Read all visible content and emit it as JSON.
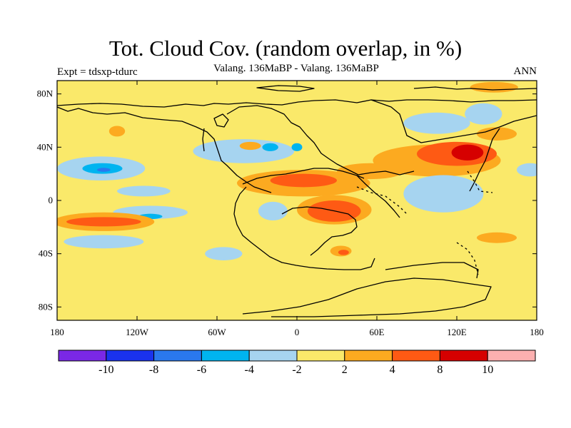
{
  "title": "Tot. Cloud Cov. (random overlap, in %)",
  "subtitle": "Valang. 136MaBP - Valang.  136MaBP",
  "experiment": "Expt = tdsxp-tdurc",
  "season": "ANN",
  "chart_data": {
    "type": "contour-map",
    "projection": "cylindrical-equidistant",
    "xlim": [
      -180,
      180
    ],
    "ylim": [
      -90,
      90
    ],
    "x_ticks": [
      {
        "value": -180,
        "label": "180"
      },
      {
        "value": -120,
        "label": "120W"
      },
      {
        "value": -60,
        "label": "60W"
      },
      {
        "value": 0,
        "label": "0"
      },
      {
        "value": 60,
        "label": "60E"
      },
      {
        "value": 120,
        "label": "120E"
      },
      {
        "value": 180,
        "label": "180"
      }
    ],
    "y_ticks": [
      {
        "value": 80,
        "label": "80N"
      },
      {
        "value": 40,
        "label": "40N"
      },
      {
        "value": 0,
        "label": "0"
      },
      {
        "value": -40,
        "label": "40S"
      },
      {
        "value": -80,
        "label": "80S"
      }
    ],
    "colorbar": {
      "colors": [
        "#7a28e6",
        "#1a32ee",
        "#2a78ee",
        "#00b4f0",
        "#a6d4f0",
        "#fae96a",
        "#fcaa20",
        "#fe5a14",
        "#d60000",
        "#fcb0b0"
      ],
      "boundaries": [
        "-10",
        "-8",
        "-6",
        "-4",
        "-2",
        "2",
        "4",
        "8",
        "10"
      ]
    },
    "fields": [
      {
        "name": "N Pacific 20N",
        "level": -2,
        "cx": -147,
        "cy": 24,
        "rx": 33,
        "ry": 9
      },
      {
        "name": "N Pacific 20N core",
        "level": -4,
        "cx": -146,
        "cy": 24,
        "rx": 15,
        "ry": 4
      },
      {
        "name": "N Pacific 20N inner",
        "level": -6,
        "cx": -145,
        "cy": 23,
        "rx": 5,
        "ry": 1.5
      },
      {
        "name": "E Pacific 8N",
        "level": -2,
        "cx": -115,
        "cy": 7,
        "rx": 20,
        "ry": 4
      },
      {
        "name": "S Pacific 10S",
        "level": -2,
        "cx": -110,
        "cy": -9,
        "rx": 28,
        "ry": 5
      },
      {
        "name": "S Pacific 10S core",
        "level": -4,
        "cx": -110,
        "cy": -12,
        "rx": 9,
        "ry": 2
      },
      {
        "name": "S Pacific 30S",
        "level": -2,
        "cx": -145,
        "cy": -31,
        "rx": 30,
        "ry": 5
      },
      {
        "name": "S Pacific 15S",
        "level": 2,
        "cx": -145,
        "cy": -16,
        "rx": 38,
        "ry": 7
      },
      {
        "name": "S Pacific 15S core",
        "level": 4,
        "cx": -145,
        "cy": -16,
        "rx": 28,
        "ry": 3.5
      },
      {
        "name": "N Pacific 50N",
        "level": 2,
        "cx": -135,
        "cy": 52,
        "rx": 6,
        "ry": 4
      },
      {
        "name": "N Atlantic 35N",
        "level": -2,
        "cx": -40,
        "cy": 37,
        "rx": 38,
        "ry": 9
      },
      {
        "name": "N Atlantic 40N core",
        "level": -4,
        "cx": -20,
        "cy": 40,
        "rx": 6,
        "ry": 3
      },
      {
        "name": "Tethys 40N core",
        "level": -4,
        "cx": 0,
        "cy": 40,
        "rx": 4,
        "ry": 3
      },
      {
        "name": "W Tethys 35N",
        "level": 2,
        "cx": -35,
        "cy": 41,
        "rx": 8,
        "ry": 3
      },
      {
        "name": "Equatorial Africa 10N",
        "level": 2,
        "cx": 5,
        "cy": 13,
        "rx": 50,
        "ry": 10
      },
      {
        "name": "Equatorial Africa 10N core",
        "level": 4,
        "cx": 5,
        "cy": 15,
        "rx": 25,
        "ry": 5
      },
      {
        "name": "Africa 10S",
        "level": 2,
        "cx": 28,
        "cy": -7,
        "rx": 28,
        "ry": 11
      },
      {
        "name": "Africa 10S core",
        "level": 4,
        "cx": 28,
        "cy": -8,
        "rx": 20,
        "ry": 8
      },
      {
        "name": "South Atlantic 5S",
        "level": -2,
        "cx": -18,
        "cy": -8,
        "rx": 11,
        "ry": 7
      },
      {
        "name": "S America 40S",
        "level": -2,
        "cx": -55,
        "cy": -40,
        "rx": 14,
        "ry": 5
      },
      {
        "name": "S Africa 40S",
        "level": 2,
        "cx": 33,
        "cy": -38,
        "rx": 8,
        "ry": 4
      },
      {
        "name": "S Africa 40S core",
        "level": 4,
        "cx": 35,
        "cy": -39,
        "rx": 4,
        "ry": 2
      },
      {
        "name": "Asia 35N",
        "level": 2,
        "cx": 105,
        "cy": 30,
        "rx": 48,
        "ry": 12
      },
      {
        "name": "Asia 35N core",
        "level": 4,
        "cx": 120,
        "cy": 35,
        "rx": 30,
        "ry": 9
      },
      {
        "name": "Asia 35N inner",
        "level": 8,
        "cx": 128,
        "cy": 36,
        "rx": 12,
        "ry": 6
      },
      {
        "name": "N Asia 55N",
        "level": -2,
        "cx": 105,
        "cy": 58,
        "rx": 25,
        "ry": 8
      },
      {
        "name": "Siberia 70N",
        "level": -2,
        "cx": 140,
        "cy": 65,
        "rx": 14,
        "ry": 8
      },
      {
        "name": "Arctic 85N",
        "level": 2,
        "cx": 148,
        "cy": 85,
        "rx": 18,
        "ry": 4
      },
      {
        "name": "NE Asia 45N",
        "level": 2,
        "cx": 150,
        "cy": 50,
        "rx": 15,
        "ry": 5
      },
      {
        "name": "Tethys 10N",
        "level": -2,
        "cx": 110,
        "cy": 5,
        "rx": 30,
        "ry": 14
      },
      {
        "name": "E Tethys 20N",
        "level": 2,
        "cx": 55,
        "cy": 22,
        "rx": 25,
        "ry": 6
      },
      {
        "name": "Australia 25S",
        "level": 2,
        "cx": 150,
        "cy": -28,
        "rx": 15,
        "ry": 4
      },
      {
        "name": "Pacific 0",
        "level": -2,
        "cx": 175,
        "cy": 23,
        "rx": 10,
        "ry": 5
      }
    ]
  }
}
